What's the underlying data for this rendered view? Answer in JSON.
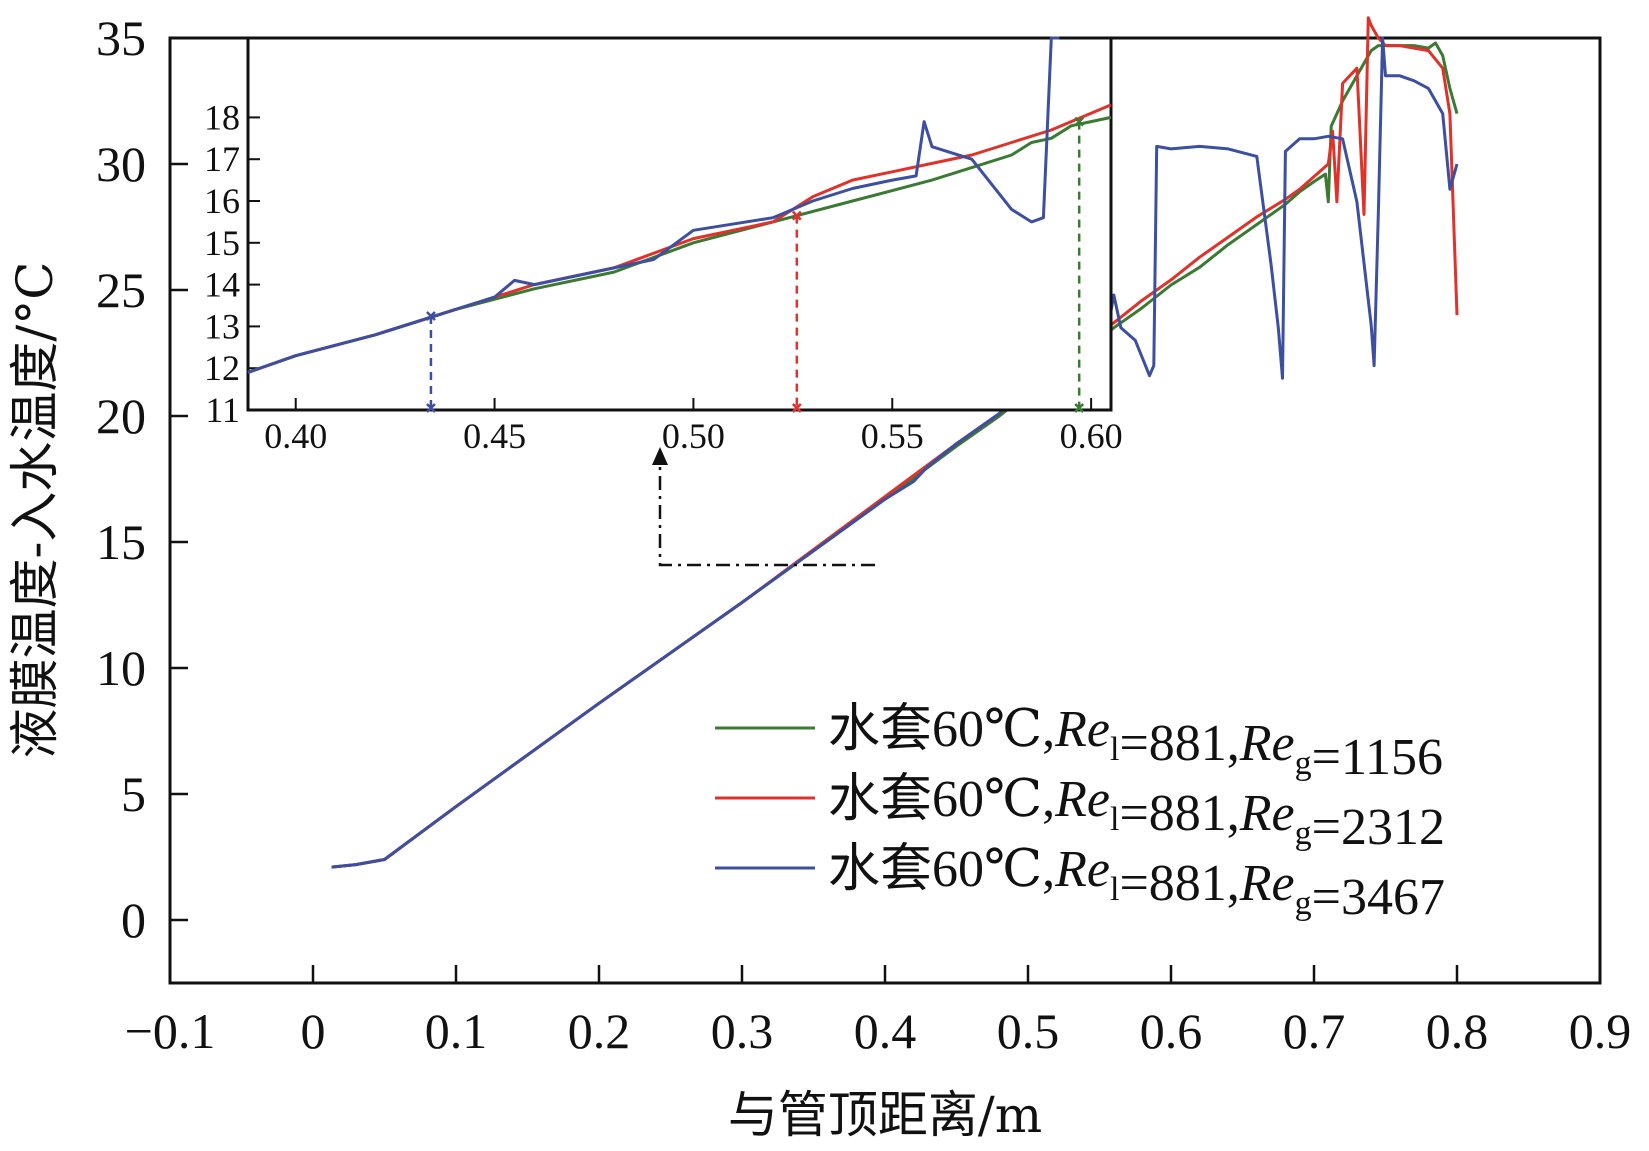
{
  "chart_data": {
    "type": "line",
    "xlabel": "与管顶距离/m",
    "ylabel": "液膜温度-入水温度/°C",
    "xlim": [
      -0.1,
      0.9
    ],
    "ylim": [
      -2.5,
      35
    ],
    "xticks": [
      "−0.1",
      "0",
      "0.1",
      "0.2",
      "0.3",
      "0.4",
      "0.5",
      "0.6",
      "0.7",
      "0.8",
      "0.9"
    ],
    "yticks": [
      "0",
      "5",
      "10",
      "15",
      "20",
      "25",
      "30",
      "35"
    ],
    "series": [
      {
        "name": "green",
        "color": "#3a7a32",
        "legend": {
          "prefix": "水套60℃,",
          "re": "Re",
          "sub1": "l",
          "mid": "=881,",
          "sub2": "g",
          "value": "=1156"
        },
        "x": [
          0.013,
          0.03,
          0.05,
          0.1,
          0.2,
          0.3,
          0.4,
          0.45,
          0.48,
          0.5,
          0.52,
          0.54,
          0.56,
          0.58,
          0.6,
          0.62,
          0.64,
          0.66,
          0.68,
          0.69,
          0.7,
          0.708,
          0.71,
          0.712,
          0.72,
          0.73,
          0.74,
          0.745,
          0.75,
          0.76,
          0.77,
          0.78,
          0.785,
          0.79,
          0.795,
          0.8
        ],
        "y": [
          2.1,
          2.2,
          2.4,
          4.5,
          8.6,
          12.6,
          16.7,
          18.8,
          20.0,
          20.9,
          21.8,
          22.6,
          23.5,
          24.3,
          25.2,
          25.9,
          26.8,
          27.6,
          28.4,
          28.9,
          29.3,
          29.6,
          28.5,
          31.5,
          32.5,
          33.5,
          34.5,
          34.7,
          34.7,
          34.7,
          34.7,
          34.6,
          34.8,
          34.3,
          33.0,
          32.0
        ]
      },
      {
        "name": "red",
        "color": "#e0322a",
        "legend": {
          "prefix": "水套60℃,",
          "re": "Re",
          "sub1": "l",
          "mid": "=881,",
          "sub2": "g",
          "value": "=2312"
        },
        "x": [
          0.013,
          0.03,
          0.05,
          0.1,
          0.2,
          0.3,
          0.4,
          0.45,
          0.48,
          0.5,
          0.52,
          0.54,
          0.56,
          0.58,
          0.6,
          0.62,
          0.64,
          0.66,
          0.68,
          0.69,
          0.7,
          0.71,
          0.713,
          0.716,
          0.72,
          0.73,
          0.735,
          0.738,
          0.74,
          0.745,
          0.75,
          0.76,
          0.77,
          0.78,
          0.79,
          0.795,
          0.8
        ],
        "y": [
          2.1,
          2.2,
          2.4,
          4.5,
          8.6,
          12.6,
          16.8,
          18.9,
          20.1,
          21.1,
          22.0,
          22.8,
          23.7,
          24.6,
          25.4,
          26.3,
          27.1,
          27.9,
          28.6,
          29.0,
          29.5,
          30.0,
          31.3,
          28.5,
          33.2,
          33.8,
          28.0,
          35.8,
          35.5,
          35.0,
          34.7,
          34.7,
          34.6,
          34.5,
          33.8,
          32.0,
          24.0
        ]
      },
      {
        "name": "blue",
        "color": "#3c4fa0",
        "legend": {
          "prefix": "水套60℃,",
          "re": "Re",
          "sub1": "l",
          "mid": "=881,",
          "sub2": "g",
          "value": "=3467"
        },
        "x": [
          0.013,
          0.03,
          0.05,
          0.1,
          0.2,
          0.3,
          0.4,
          0.42,
          0.43,
          0.45,
          0.48,
          0.5,
          0.52,
          0.54,
          0.555,
          0.56,
          0.565,
          0.575,
          0.585,
          0.588,
          0.59,
          0.6,
          0.62,
          0.64,
          0.66,
          0.67,
          0.675,
          0.678,
          0.68,
          0.69,
          0.7,
          0.71,
          0.72,
          0.73,
          0.74,
          0.742,
          0.745,
          0.748,
          0.75,
          0.76,
          0.77,
          0.78,
          0.79,
          0.795,
          0.8
        ],
        "y": [
          2.1,
          2.2,
          2.4,
          4.5,
          8.6,
          12.6,
          16.7,
          17.4,
          18.0,
          18.9,
          20.1,
          21.4,
          22.0,
          22.8,
          23.2,
          24.8,
          23.5,
          23.0,
          21.6,
          22.0,
          30.7,
          30.6,
          30.7,
          30.6,
          30.3,
          26.0,
          23.5,
          21.5,
          30.5,
          31.0,
          31.0,
          31.1,
          31.0,
          28.5,
          23.6,
          22.0,
          28.0,
          35.0,
          33.5,
          33.5,
          33.3,
          33.0,
          32.0,
          29.0,
          30.0
        ]
      }
    ],
    "inset": {
      "xlim": [
        0.388,
        0.605
      ],
      "ylim": [
        11,
        19.9
      ],
      "xticks": [
        "0.40",
        "0.45",
        "0.50",
        "0.55",
        "0.60"
      ],
      "yticks": [
        "11",
        "12",
        "13",
        "14",
        "15",
        "16",
        "17",
        "18"
      ],
      "markers": [
        {
          "series": "blue",
          "x": 0.434,
          "y": 13.25
        },
        {
          "series": "red",
          "x": 0.526,
          "y": 15.65
        },
        {
          "series": "green",
          "x": 0.597,
          "y": 17.9
        }
      ],
      "series": [
        {
          "name": "green",
          "x": [
            0.388,
            0.4,
            0.42,
            0.44,
            0.46,
            0.48,
            0.5,
            0.52,
            0.54,
            0.56,
            0.57,
            0.58,
            0.585,
            0.59,
            0.595,
            0.6,
            0.605
          ],
          "y": [
            11.9,
            12.3,
            12.8,
            13.4,
            13.9,
            14.3,
            15.0,
            15.5,
            16.0,
            16.5,
            16.8,
            17.1,
            17.4,
            17.5,
            17.8,
            17.9,
            18.0
          ]
        },
        {
          "name": "red",
          "x": [
            0.388,
            0.4,
            0.42,
            0.44,
            0.46,
            0.48,
            0.5,
            0.52,
            0.53,
            0.54,
            0.55,
            0.56,
            0.57,
            0.58,
            0.59,
            0.6,
            0.605
          ],
          "y": [
            11.9,
            12.3,
            12.8,
            13.4,
            14.0,
            14.4,
            15.1,
            15.5,
            16.1,
            16.5,
            16.7,
            16.9,
            17.1,
            17.4,
            17.7,
            18.1,
            18.3
          ]
        },
        {
          "name": "blue",
          "x": [
            0.388,
            0.4,
            0.42,
            0.44,
            0.45,
            0.455,
            0.46,
            0.48,
            0.49,
            0.5,
            0.52,
            0.53,
            0.54,
            0.55,
            0.556,
            0.558,
            0.56,
            0.57,
            0.58,
            0.585,
            0.588,
            0.59,
            0.592
          ],
          "y": [
            11.9,
            12.3,
            12.8,
            13.4,
            13.7,
            14.1,
            14.0,
            14.4,
            14.6,
            15.3,
            15.6,
            16.0,
            16.3,
            16.5,
            16.6,
            17.9,
            17.3,
            17.0,
            15.8,
            15.5,
            15.6,
            19.9,
            19.9
          ]
        }
      ]
    }
  }
}
